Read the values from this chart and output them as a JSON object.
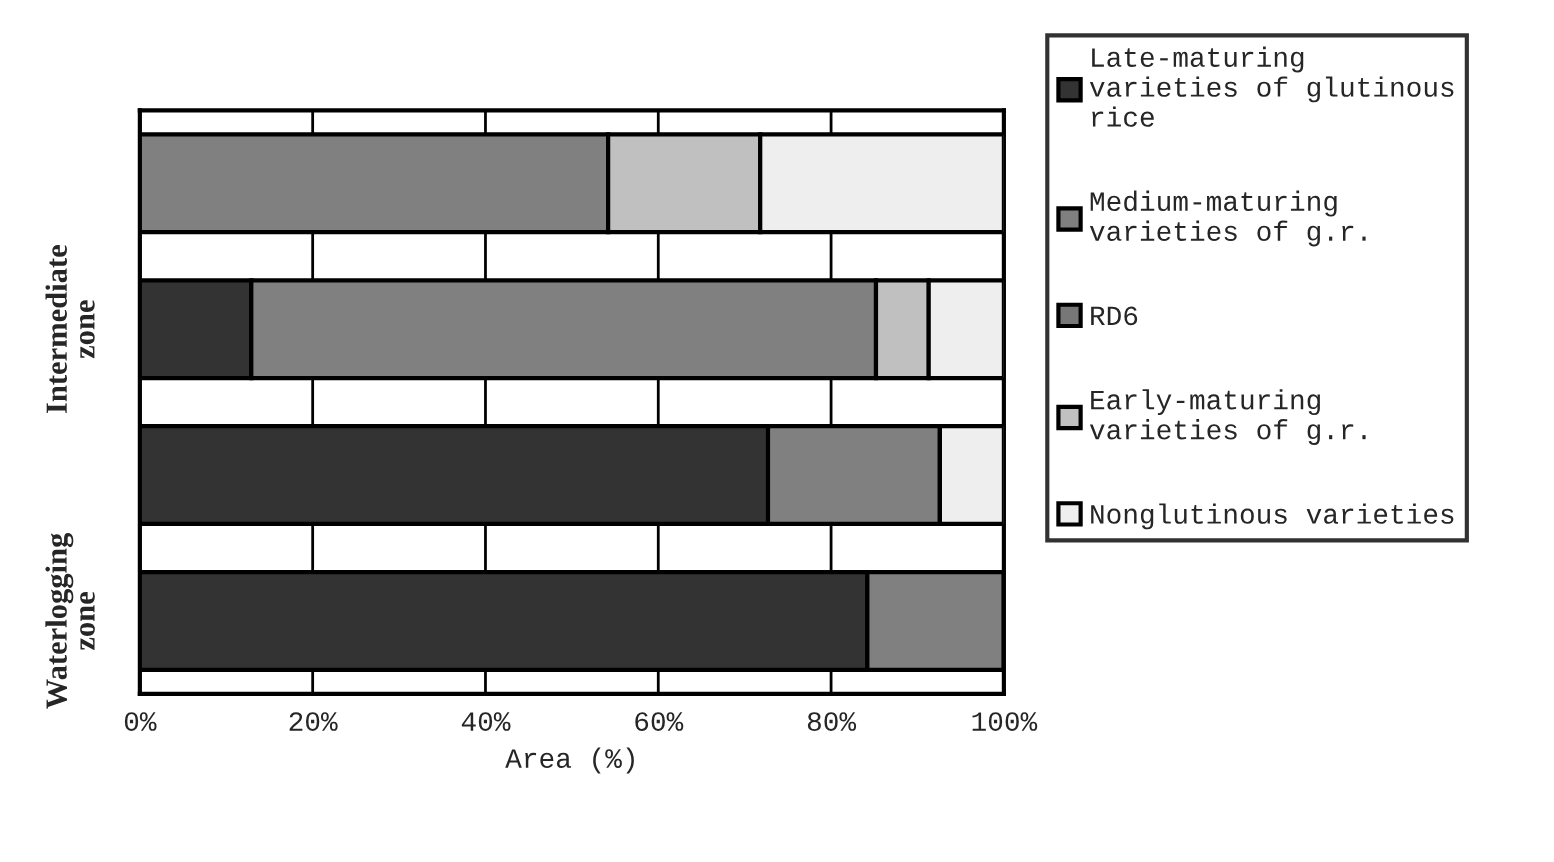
{
  "chart_data": {
    "type": "bar",
    "orientation": "horizontal",
    "stacked": true,
    "categories": [
      null,
      "Intermediate\nzone",
      null,
      "Waterlogging\nzone"
    ],
    "series": [
      {
        "name": "Late-maturing\nvarieties of glutinous\nrice",
        "color": "#333333",
        "values": [
          0,
          12.9,
          72.7,
          84.2
        ]
      },
      {
        "name": "Medium-maturing\nvarieties of g.r.",
        "color": "#808080",
        "values": [
          54.2,
          72.3,
          19.9,
          15.8
        ]
      },
      {
        "name": "RD6",
        "color": "#777777",
        "values": [
          0,
          0,
          0,
          0
        ]
      },
      {
        "name": "Early-maturing\nvarieties of g.r.",
        "color": "#c0c0c0",
        "values": [
          17.6,
          6.1,
          0,
          0
        ]
      },
      {
        "name": "Nonglutinous varieties",
        "color": "#eeeeee",
        "values": [
          28.2,
          8.7,
          7.4,
          0
        ]
      }
    ],
    "xlabel": "Area (%)",
    "xlim": [
      0,
      100
    ],
    "xticks": [
      {
        "value": 0,
        "label": "0%"
      },
      {
        "value": 20,
        "label": "20%"
      },
      {
        "value": 40,
        "label": "40%"
      },
      {
        "value": 60,
        "label": "60%"
      },
      {
        "value": 80,
        "label": "80%"
      },
      {
        "value": 100,
        "label": "100%"
      }
    ],
    "grid": "x",
    "legend": "right"
  }
}
